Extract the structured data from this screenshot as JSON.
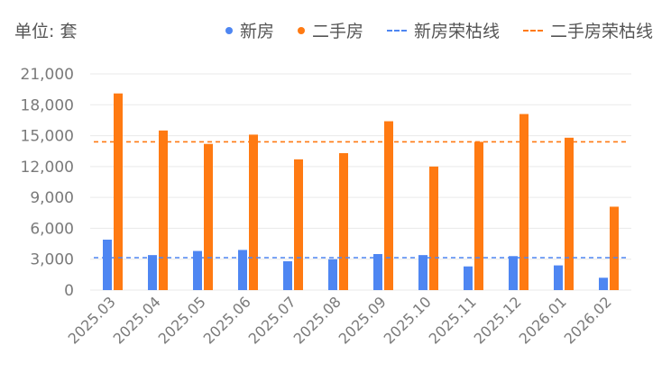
{
  "unit_label": "单位: 套",
  "colors": {
    "new": "#4E86F2",
    "second": "#FF7A12",
    "grid": "#e9e9e9"
  },
  "legend": [
    {
      "label": "新房",
      "kind": "dot",
      "color": "#4E86F2"
    },
    {
      "label": "二手房",
      "kind": "dot",
      "color": "#FF7A12"
    },
    {
      "label": "新房荣枯线",
      "kind": "dash",
      "color": "#4E86F2"
    },
    {
      "label": "二手房荣枯线",
      "kind": "dash",
      "color": "#FF7A12"
    }
  ],
  "chart_data": {
    "type": "bar",
    "categories": [
      "2025.03",
      "2025.04",
      "2025.05",
      "2025.06",
      "2025.07",
      "2025.08",
      "2025.09",
      "2025.10",
      "2025.11",
      "2025.12",
      "2026.01",
      "2026.02"
    ],
    "series": [
      {
        "name": "新房",
        "values": [
          4900,
          3400,
          3800,
          3900,
          2800,
          3000,
          3500,
          3400,
          2300,
          3300,
          2400,
          1200
        ]
      },
      {
        "name": "二手房",
        "values": [
          19100,
          15500,
          14200,
          15100,
          12700,
          13300,
          16400,
          12000,
          14400,
          17100,
          14800,
          8100
        ]
      }
    ],
    "reference_lines": [
      {
        "name": "新房荣枯线",
        "value": 3150
      },
      {
        "name": "二手房荣枯线",
        "value": 14400
      }
    ],
    "yticks": [
      "0",
      "3,000",
      "6,000",
      "9,000",
      "12,000",
      "15,000",
      "18,000",
      "21,000"
    ],
    "ylim": [
      0,
      21000
    ],
    "grid": true,
    "legend_position": "top-right"
  }
}
